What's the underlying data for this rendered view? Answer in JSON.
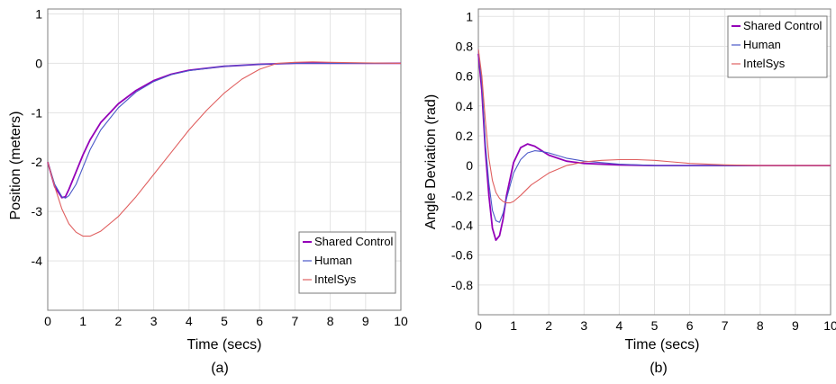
{
  "colors": {
    "shared": "#9400b8",
    "human": "#4a58c8",
    "intelsys": "#e06060"
  },
  "chart_data": [
    {
      "type": "line",
      "caption": "(a)",
      "xlabel": "Time (secs)",
      "ylabel": "Position (meters)",
      "xlim": [
        0,
        10
      ],
      "ylim": [
        -5,
        1.1
      ],
      "xticks": [
        "0",
        "1",
        "2",
        "3",
        "4",
        "5",
        "6",
        "7",
        "8",
        "9",
        "10"
      ],
      "yticks": [
        "1",
        "0",
        "-1",
        "-2",
        "-3",
        "-4"
      ],
      "grid": true,
      "legend_position": "bottom-right",
      "series": [
        {
          "name": "Shared Control",
          "color_key": "shared",
          "x": [
            0,
            0.2,
            0.4,
            0.5,
            0.6,
            0.8,
            1.0,
            1.2,
            1.5,
            2.0,
            2.5,
            3.0,
            3.5,
            4.0,
            5.0,
            6.0,
            7.0,
            8.0,
            10.0
          ],
          "y": [
            -2.0,
            -2.5,
            -2.72,
            -2.7,
            -2.55,
            -2.2,
            -1.85,
            -1.55,
            -1.2,
            -0.82,
            -0.55,
            -0.35,
            -0.22,
            -0.14,
            -0.06,
            -0.02,
            0.0,
            0.0,
            0.0
          ]
        },
        {
          "name": "Human",
          "color_key": "human",
          "x": [
            0,
            0.2,
            0.4,
            0.5,
            0.6,
            0.8,
            1.0,
            1.2,
            1.5,
            2.0,
            2.5,
            3.0,
            3.5,
            4.0,
            5.0,
            6.0,
            7.0,
            8.0,
            10.0
          ],
          "y": [
            -2.0,
            -2.45,
            -2.7,
            -2.73,
            -2.68,
            -2.45,
            -2.1,
            -1.75,
            -1.35,
            -0.9,
            -0.58,
            -0.37,
            -0.23,
            -0.15,
            -0.06,
            -0.02,
            0.0,
            0.0,
            0.0
          ]
        },
        {
          "name": "IntelSys",
          "color_key": "intelsys",
          "x": [
            0,
            0.2,
            0.4,
            0.6,
            0.8,
            1.0,
            1.2,
            1.5,
            2.0,
            2.5,
            3.0,
            3.5,
            4.0,
            4.5,
            5.0,
            5.5,
            6.0,
            6.5,
            7.0,
            7.5,
            8.0,
            9.0,
            10.0
          ],
          "y": [
            -2.0,
            -2.5,
            -2.95,
            -3.25,
            -3.42,
            -3.5,
            -3.5,
            -3.4,
            -3.1,
            -2.7,
            -2.25,
            -1.8,
            -1.35,
            -0.95,
            -0.6,
            -0.32,
            -0.12,
            0.0,
            0.02,
            0.03,
            0.02,
            0.01,
            0.0
          ]
        }
      ]
    },
    {
      "type": "line",
      "caption": "(b)",
      "xlabel": "Time (secs)",
      "ylabel": "Angle Deviation (rad)",
      "xlim": [
        0,
        10
      ],
      "ylim": [
        -1,
        1.05
      ],
      "xticks": [
        "0",
        "1",
        "2",
        "3",
        "4",
        "5",
        "6",
        "7",
        "8",
        "9",
        "10"
      ],
      "yticks": [
        "1",
        "0.8",
        "0.6",
        "0.4",
        "0.2",
        "0",
        "-0.2",
        "-0.4",
        "-0.6",
        "-0.8"
      ],
      "grid": true,
      "legend_position": "top-right",
      "series": [
        {
          "name": "Shared Control",
          "color_key": "shared",
          "x": [
            0,
            0.1,
            0.2,
            0.3,
            0.4,
            0.5,
            0.6,
            0.7,
            0.8,
            1.0,
            1.2,
            1.4,
            1.6,
            1.8,
            2.0,
            2.5,
            3.0,
            3.5,
            4.0,
            5.0,
            6.0,
            8.0,
            10.0
          ],
          "y": [
            0.75,
            0.5,
            0.1,
            -0.2,
            -0.42,
            -0.5,
            -0.47,
            -0.36,
            -0.2,
            0.02,
            0.12,
            0.145,
            0.13,
            0.1,
            0.07,
            0.03,
            0.015,
            0.01,
            0.005,
            0.0,
            0.0,
            0.0,
            0.0
          ]
        },
        {
          "name": "Human",
          "color_key": "human",
          "x": [
            0,
            0.1,
            0.2,
            0.3,
            0.4,
            0.5,
            0.6,
            0.7,
            0.8,
            1.0,
            1.2,
            1.4,
            1.6,
            1.8,
            2.0,
            2.5,
            3.0,
            3.5,
            4.0,
            5.0,
            6.0,
            8.0,
            10.0
          ],
          "y": [
            0.78,
            0.55,
            0.15,
            -0.12,
            -0.3,
            -0.37,
            -0.38,
            -0.32,
            -0.22,
            -0.05,
            0.04,
            0.085,
            0.1,
            0.095,
            0.085,
            0.05,
            0.03,
            0.02,
            0.01,
            0.0,
            0.0,
            0.0,
            0.0
          ]
        },
        {
          "name": "IntelSys",
          "color_key": "intelsys",
          "x": [
            0,
            0.1,
            0.2,
            0.3,
            0.4,
            0.5,
            0.6,
            0.7,
            0.8,
            0.9,
            1.0,
            1.2,
            1.5,
            2.0,
            2.5,
            3.0,
            3.5,
            4.0,
            4.5,
            5.0,
            5.5,
            6.0,
            7.0,
            8.0,
            9.0,
            10.0
          ],
          "y": [
            0.78,
            0.6,
            0.3,
            0.05,
            -0.1,
            -0.18,
            -0.22,
            -0.24,
            -0.25,
            -0.25,
            -0.24,
            -0.2,
            -0.13,
            -0.05,
            0.0,
            0.025,
            0.035,
            0.04,
            0.04,
            0.035,
            0.025,
            0.015,
            0.005,
            0.0,
            0.0,
            0.0
          ]
        }
      ]
    }
  ]
}
